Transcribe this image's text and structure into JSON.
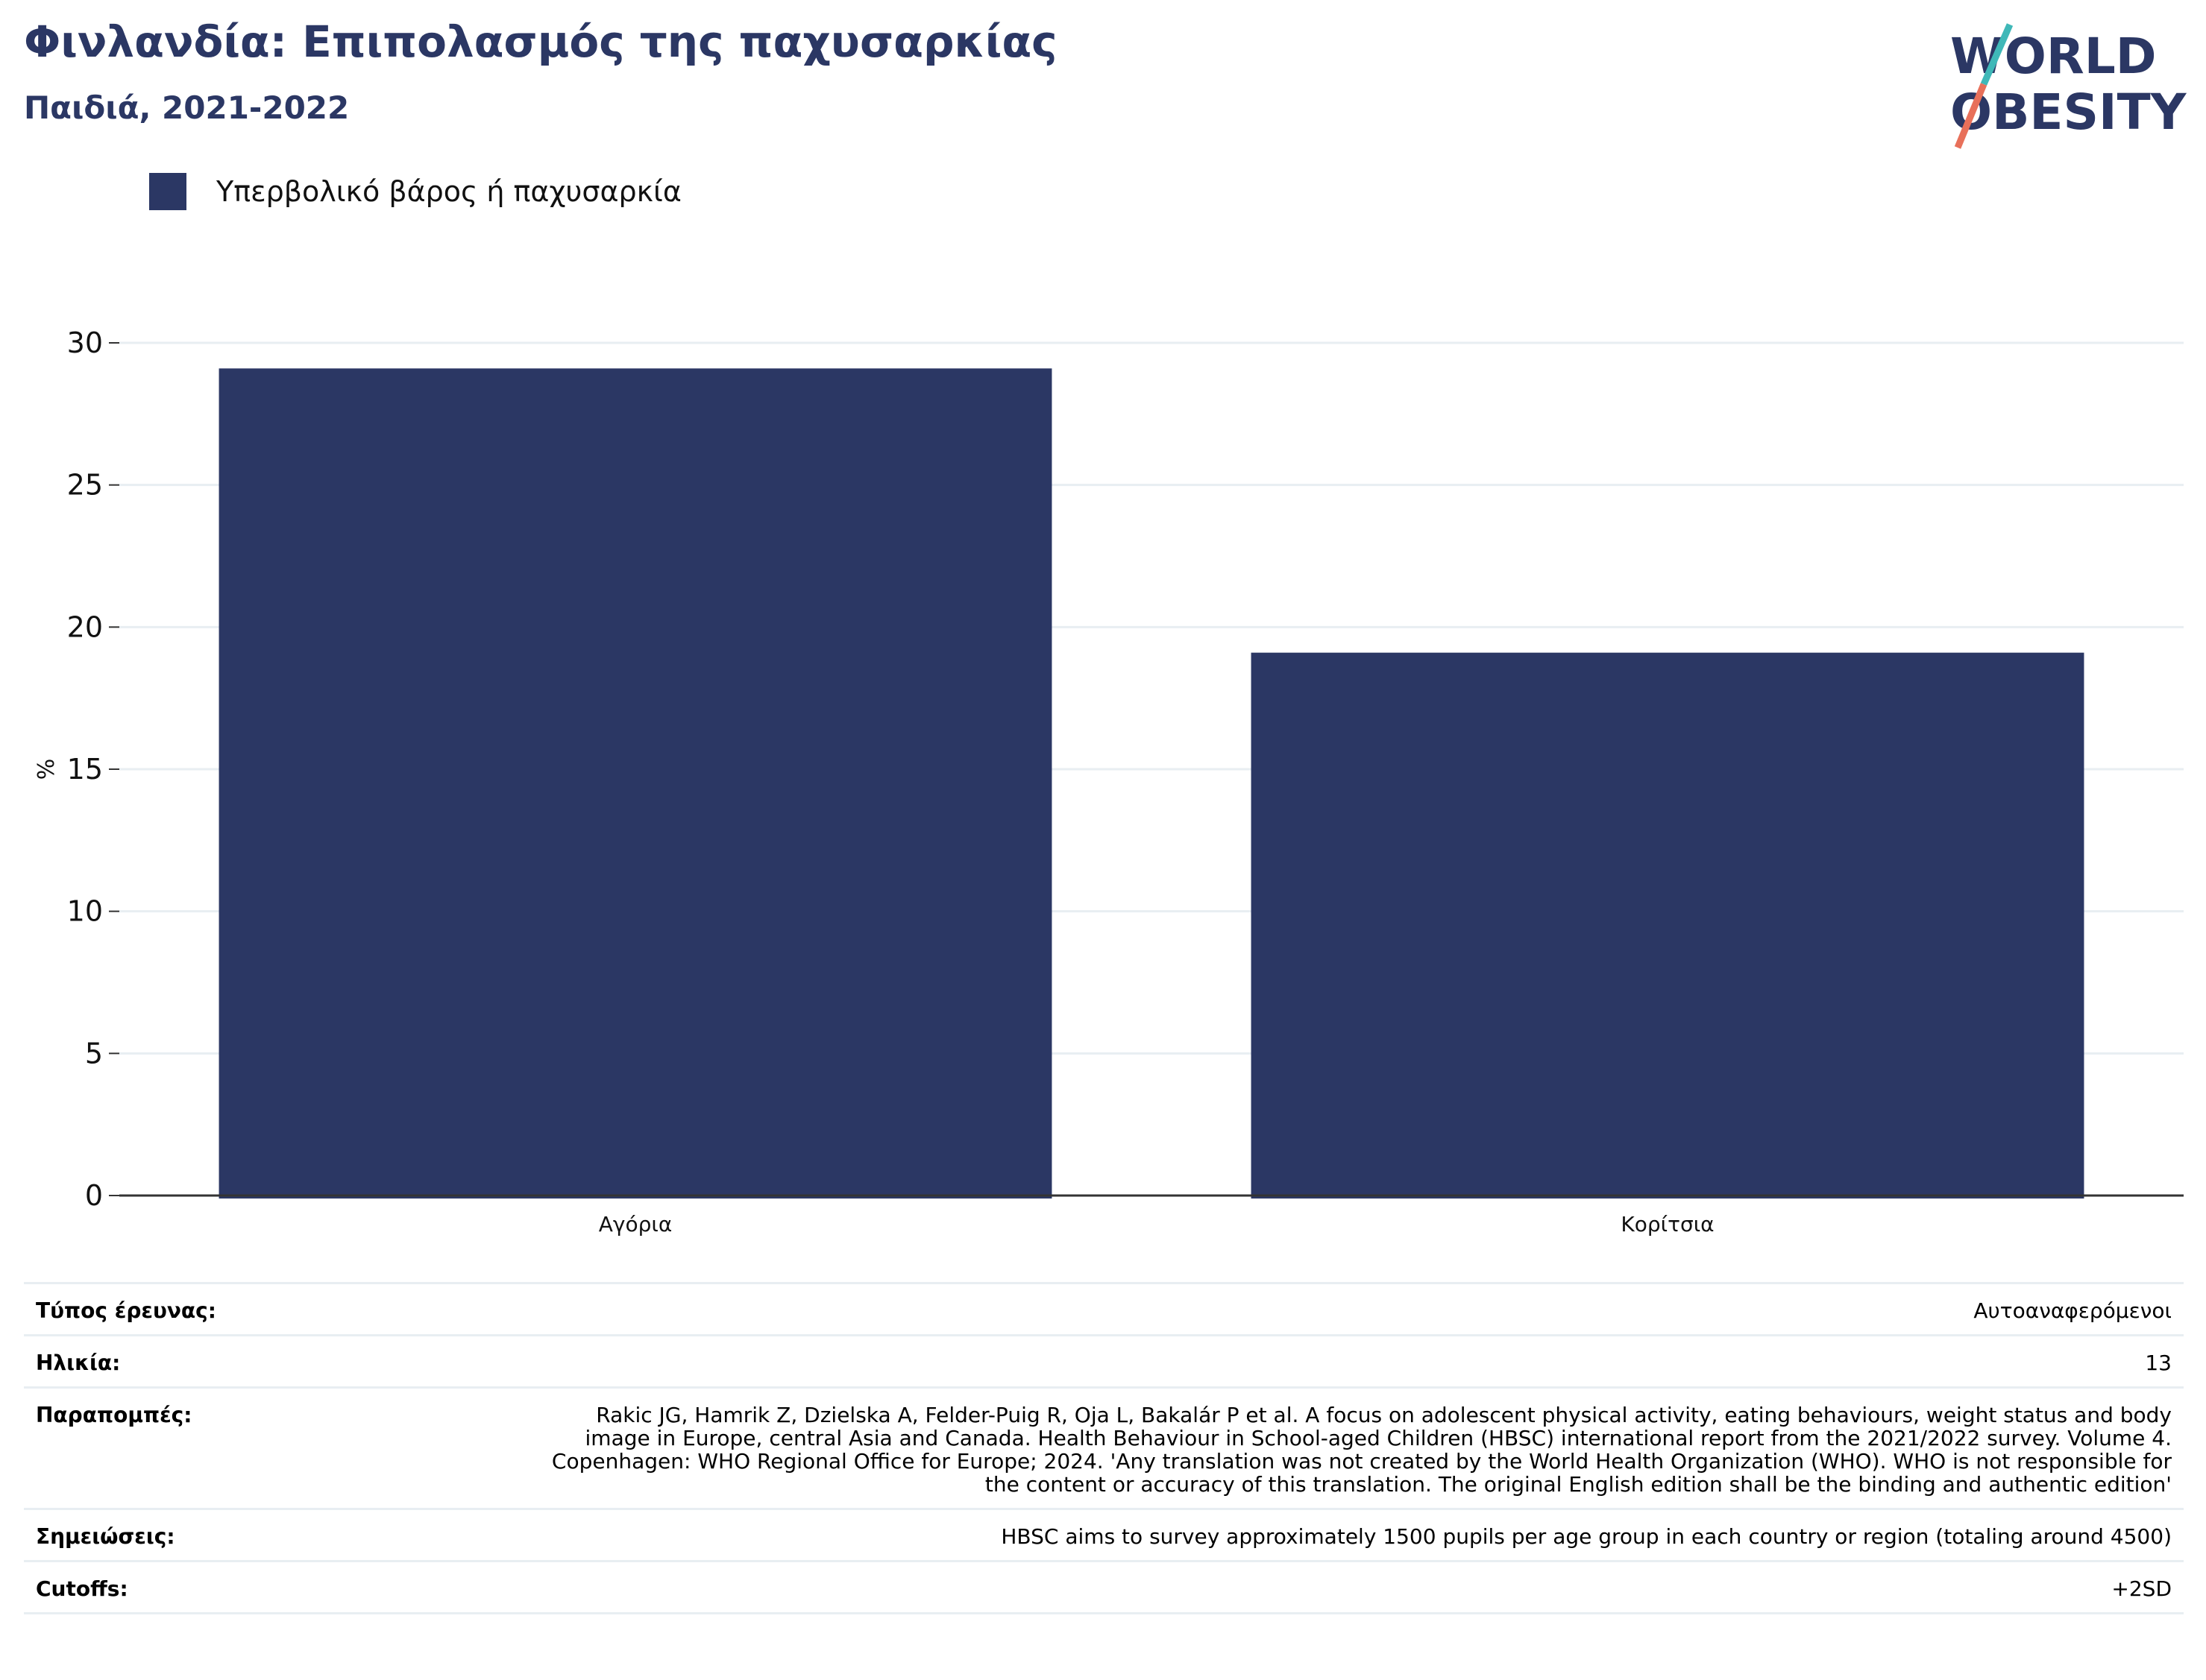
{
  "header": {
    "title": "Φινλανδία: Επιπολασμός της παχυσαρκίας",
    "subtitle": "Παιδιά, 2021-2022"
  },
  "logo": {
    "line1": "WORLD",
    "line2": "OBESITY",
    "accent_colors": [
      "#3fb8b8",
      "#e8705a"
    ]
  },
  "colors": {
    "bar": "#2b3764",
    "grid": "#e8eef2",
    "title": "#2b3764"
  },
  "chart_data": {
    "type": "bar",
    "categories": [
      "Αγόρια",
      "Κορίτσια"
    ],
    "series": [
      {
        "name": "Υπερβολικό βάρος ή παχυσαρκία",
        "values": [
          29.1,
          19.1
        ]
      }
    ],
    "ylabel": "%",
    "xlabel": "",
    "ylim": [
      0,
      30
    ],
    "yticks": [
      0,
      5,
      10,
      15,
      20,
      25,
      30
    ],
    "grid": true,
    "legend_position": "top-left"
  },
  "meta": {
    "rows": [
      {
        "label": "Τύπος έρευνας:",
        "value": "Αυτοαναφερόμενοι"
      },
      {
        "label": "Ηλικία:",
        "value": "13"
      },
      {
        "label": "Παραπομπές:",
        "value": "Rakic JG, Hamrik Z, Dzielska A, Felder-Puig R, Oja L, Bakalár P et al. A focus on adolescent physical activity, eating behaviours, weight status and body image in Europe, central Asia and Canada. Health Behaviour in School-aged Children (HBSC) international report from the 2021/2022 survey. Volume 4. Copenhagen: WHO Regional Office for Europe; 2024. 'Any translation was not created by the World Health Organization (WHO). WHO is not responsible for the content or accuracy of this translation. The original English edition shall be the binding and authentic edition'"
      },
      {
        "label": "Σημειώσεις:",
        "value": "HBSC aims to survey approximately 1500 pupils per age group in each country or region (totaling around 4500)"
      },
      {
        "label": "Cutoffs:",
        "value": "+2SD"
      }
    ]
  }
}
